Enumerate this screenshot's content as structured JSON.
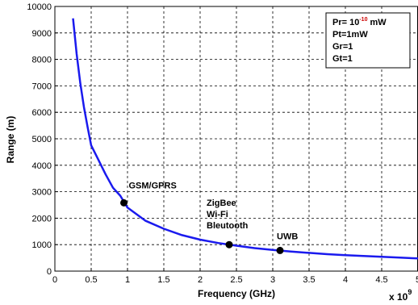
{
  "chart_data": {
    "type": "line",
    "xlabel": "Frequency (GHz)",
    "ylabel": "Range (m)",
    "x_multiplier_text": "x 10",
    "x_multiplier_exp": "9",
    "xlim": [
      0,
      5
    ],
    "ylim": [
      0,
      10000
    ],
    "x_ticks": [
      0,
      0.5,
      1,
      1.5,
      2,
      2.5,
      3,
      3.5,
      4,
      4.5,
      5
    ],
    "x_tick_labels": [
      "0",
      "0.5",
      "1",
      "1.5",
      "2",
      "2.5",
      "3",
      "3.5",
      "4",
      "4.5",
      "5"
    ],
    "y_ticks": [
      0,
      1000,
      2000,
      3000,
      4000,
      5000,
      6000,
      7000,
      8000,
      9000,
      10000
    ],
    "y_tick_labels": [
      "0",
      "1000",
      "2000",
      "3000",
      "4000",
      "5000",
      "6000",
      "7000",
      "8000",
      "9000",
      "10000"
    ],
    "grid": true,
    "series_color": "#1a1aee",
    "series": [
      {
        "x": [
          0.25,
          0.3,
          0.35,
          0.4,
          0.45,
          0.5,
          0.6,
          0.7,
          0.8,
          0.9,
          1.0,
          1.25,
          1.5,
          1.75,
          2.0,
          2.25,
          2.5,
          2.75,
          3.0,
          3.25,
          3.5,
          3.75,
          4.0,
          4.25,
          4.5,
          4.75,
          5.0
        ],
        "y": [
          9550,
          8200,
          7100,
          6200,
          5450,
          4750,
          4200,
          3650,
          3150,
          2850,
          2400,
          1900,
          1600,
          1360,
          1190,
          1060,
          960,
          870,
          800,
          740,
          690,
          640,
          600,
          570,
          540,
          510,
          480
        ]
      }
    ],
    "points": [
      {
        "x": 0.95,
        "y": 2580,
        "label": "GSM/GPRS"
      },
      {
        "x": 2.4,
        "y": 1000,
        "label_lines": [
          "ZigBee",
          "Wi-Fi",
          "Bleutooth"
        ]
      },
      {
        "x": 3.1,
        "y": 780,
        "label": "UWB"
      }
    ],
    "legend": {
      "placement": "top-right",
      "lines": [
        {
          "text": "Pr= 10",
          "sup": "-10",
          "after": " mW"
        },
        {
          "text": "Pt=1mW"
        },
        {
          "text": "Gr=1"
        },
        {
          "text": "Gt=1"
        }
      ]
    }
  }
}
